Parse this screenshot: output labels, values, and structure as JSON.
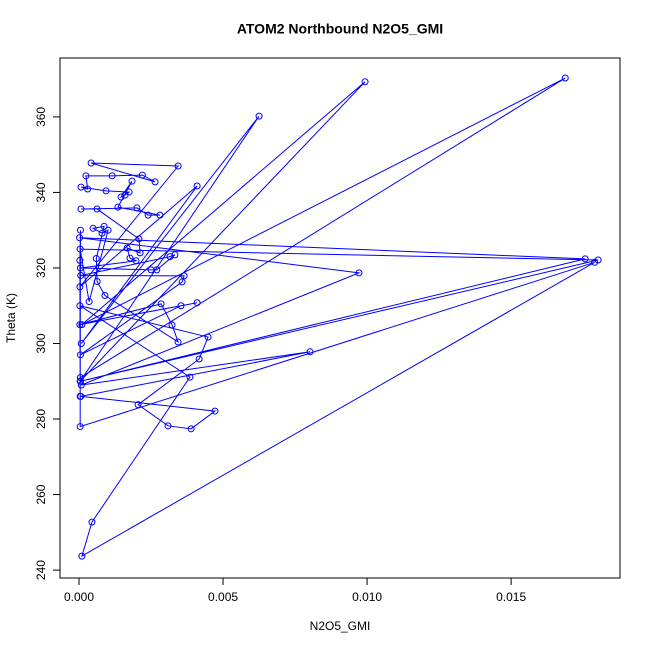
{
  "chart_data": {
    "type": "scatter_line",
    "title": "ATOM2 Northbound N2O5_GMI",
    "xlabel": "N2O5_GMI",
    "ylabel": "Theta (K)",
    "xlim": [
      -0.00066,
      0.01878
    ],
    "ylim": [
      237.9,
      375.6
    ],
    "xticks": [
      {
        "value": 0,
        "label": "0.000"
      },
      {
        "value": 0.005,
        "label": "0.005"
      },
      {
        "value": 0.01,
        "label": "0.010"
      },
      {
        "value": 0.015,
        "label": "0.015"
      }
    ],
    "yticks": [
      240,
      260,
      280,
      300,
      320,
      340,
      360
    ],
    "series": [
      {
        "color": "#0000ff",
        "x": [
          5e-05,
          0.01688,
          0.0001,
          0.00993,
          4e-05,
          0.00625,
          8e-05,
          0.0041,
          3e-05,
          0.00344,
          0.00042,
          0.00264,
          0.0022,
          0.00115,
          0.00024,
          0.0003,
          7e-05,
          0.00094,
          0.00174,
          0.0016,
          0.00146,
          0.00184,
          0.00135,
          0.00281,
          0.0024,
          0.00201,
          7e-05,
          0.00063,
          0.00208,
          0.00212,
          0.00167,
          0.00177,
          0.00198,
          5e-05,
          0.0025,
          0.0027,
          0.00333,
          0.00316,
          6e-05,
          0.00365,
          0.00358,
          5e-05,
          0.00354,
          0.0041,
          3e-05,
          0.00285,
          0.00323,
          0.00344,
          0.0009,
          0.00063,
          0.0006,
          0.00087,
          0.00049,
          0.0008,
          0.00101,
          0.00035,
          4e-05,
          0.01802,
          5e-05,
          0.01757,
          2e-05,
          0.00972,
          8e-05,
          0.00802,
          6e-05,
          0.00472,
          0.00389,
          0.00309,
          0.00205,
          0.00417,
          0.00448,
          3e-05,
          0.00385,
          0.00045,
          0.0001,
          0.0179,
          4e-05,
          5e-05,
          3e-05,
          4e-05
        ],
        "values": [
          291,
          370.3,
          305,
          369.3,
          290,
          360.2,
          300,
          341.7,
          315,
          347,
          347.8,
          342.8,
          344.6,
          344.4,
          344.4,
          340.9,
          341.4,
          340.4,
          340.1,
          339.3,
          338.8,
          343,
          336.1,
          334,
          334,
          335.9,
          335.6,
          335.6,
          327.7,
          324,
          325.3,
          322.6,
          321.9,
          320,
          319.5,
          319.5,
          323.5,
          323,
          318,
          317.9,
          316.3,
          297,
          310,
          310.8,
          305,
          310.5,
          304.9,
          300.4,
          312.7,
          316.4,
          322.5,
          331,
          330.5,
          329.2,
          330,
          311.1,
          325,
          322.1,
          290,
          322.4,
          328,
          318.7,
          289,
          297.8,
          286,
          282.1,
          277.4,
          278.2,
          283.8,
          295.9,
          301.7,
          310,
          291.1,
          252.7,
          243.7,
          321.5,
          278,
          330,
          322,
          286
        ]
      }
    ]
  }
}
